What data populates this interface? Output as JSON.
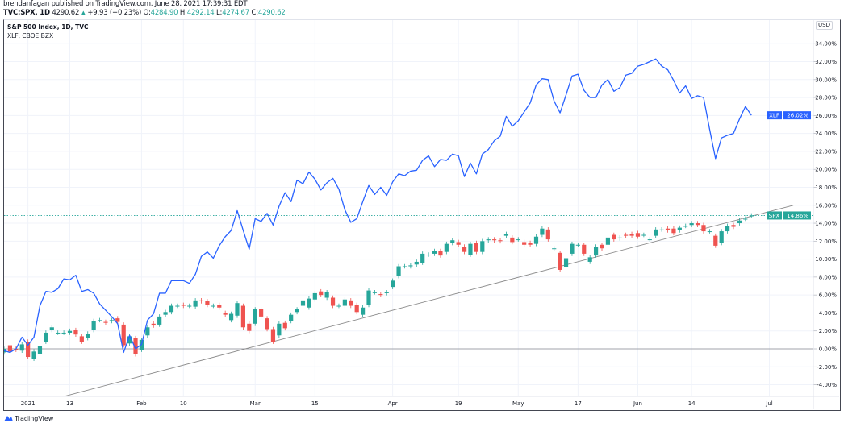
{
  "header": {
    "published": "brendanfagan published on TradingView.com, June 28, 2021 17:39:31 EDT",
    "symbol": "TVC:SPX, 1D",
    "last": "4290.62",
    "change": "+9.93 (+0.23%)",
    "open_label": "O:",
    "open": "4284.90",
    "high_label": "H:",
    "high": "4292.14",
    "low_label": "L:",
    "low": "4274.67",
    "close_label": "C:",
    "close": "4290.62"
  },
  "legend": {
    "main": "S&P 500 Index, 1D, TVC",
    "compare": "XLF, CBOE BZX"
  },
  "currency": "USD",
  "logo": "TradingView",
  "colors": {
    "up": "#26a69a",
    "down": "#ef5350",
    "xlf": "#2962ff",
    "grid": "#f0f3fa",
    "trendline": "#8a8a8a"
  },
  "chart_data": {
    "type": "candlestick+line",
    "y_unit": "percent change",
    "ylim": [
      -5,
      35
    ],
    "grid": true,
    "yticks": [
      "34.00%",
      "32.00%",
      "30.00%",
      "28.00%",
      "26.00%",
      "24.00%",
      "22.00%",
      "20.00%",
      "18.00%",
      "16.00%",
      "14.00%",
      "12.00%",
      "10.00%",
      "8.00%",
      "6.00%",
      "4.00%",
      "2.00%",
      "0.00%",
      "-2.00%",
      "-4.00%"
    ],
    "xticks": [
      "2021",
      "13",
      "Feb",
      "10",
      "Mar",
      "15",
      "Apr",
      "19",
      "May",
      "17",
      "Jun",
      "14",
      "Jul"
    ],
    "series": [
      {
        "name": "SPX",
        "type": "candlestick",
        "last_label": "14.86%",
        "open_close": [
          [
            -0.4,
            0
          ],
          [
            0.4,
            -0.3
          ],
          [
            0,
            -0.1
          ],
          [
            -0.2,
            0.5
          ],
          [
            0.8,
            -0.9
          ],
          [
            -1.1,
            -0.3
          ],
          [
            -0.6,
            0.3
          ],
          [
            0.8,
            1.8
          ],
          [
            2.1,
            2.4
          ],
          [
            1.8,
            1.8
          ],
          [
            1.8,
            1.8
          ],
          [
            1.8,
            2.0
          ],
          [
            2.1,
            1.6
          ],
          [
            1.4,
            0.8
          ],
          [
            1.2,
            1.7
          ],
          [
            2.1,
            3.1
          ],
          [
            3.2,
            3.2
          ],
          [
            3.0,
            2.9
          ],
          [
            3.1,
            3.2
          ],
          [
            3.4,
            3.0
          ],
          [
            2.7,
            0.4
          ],
          [
            0.6,
            1.4
          ],
          [
            1.2,
            -0.6
          ],
          [
            -0.1,
            1.0
          ],
          [
            1.5,
            2.4
          ],
          [
            2.8,
            2.6
          ],
          [
            2.7,
            3.6
          ],
          [
            3.8,
            4.1
          ],
          [
            4.1,
            4.8
          ],
          [
            4.8,
            4.8
          ],
          [
            4.9,
            4.8
          ],
          [
            4.8,
            4.8
          ],
          [
            4.7,
            5.4
          ],
          [
            5.4,
            5.3
          ],
          [
            5.3,
            4.9
          ],
          [
            4.8,
            4.8
          ],
          [
            4.9,
            4.6
          ],
          [
            4.0,
            3.8
          ],
          [
            3.2,
            3.9
          ],
          [
            3.7,
            5.1
          ],
          [
            4.8,
            2.4
          ],
          [
            2.8,
            2.0
          ],
          [
            2.8,
            4.4
          ],
          [
            4.4,
            3.6
          ],
          [
            3.4,
            2.2
          ],
          [
            2.2,
            0.8
          ],
          [
            1.5,
            2.8
          ],
          [
            2.9,
            2.3
          ],
          [
            3.1,
            3.8
          ],
          [
            4.1,
            4.4
          ],
          [
            4.8,
            5.4
          ],
          [
            4.6,
            5.6
          ],
          [
            5.5,
            6.2
          ],
          [
            6.4,
            6.0
          ],
          [
            5.7,
            6.3
          ],
          [
            5.7,
            4.8
          ],
          [
            4.8,
            4.8
          ],
          [
            4.8,
            5.5
          ],
          [
            5.4,
            4.8
          ],
          [
            4.9,
            4.1
          ],
          [
            3.8,
            4.6
          ],
          [
            4.9,
            6.5
          ],
          [
            6.3,
            6.3
          ],
          [
            6.1,
            6.0
          ],
          [
            6.2,
            6.3
          ],
          [
            6.9,
            7.6
          ],
          [
            8.1,
            9.2
          ],
          [
            9.2,
            9.2
          ],
          [
            9.2,
            9.3
          ],
          [
            9.4,
            9.7
          ],
          [
            9.6,
            10.6
          ],
          [
            10.5,
            10.5
          ],
          [
            10.6,
            10.9
          ],
          [
            10.9,
            10.4
          ],
          [
            10.8,
            11.7
          ],
          [
            11.8,
            12.1
          ],
          [
            11.9,
            11.6
          ],
          [
            11.4,
            10.8
          ],
          [
            10.5,
            11.7
          ],
          [
            11.8,
            10.8
          ],
          [
            10.8,
            12.0
          ],
          [
            12.1,
            12.2
          ],
          [
            12.2,
            12.1
          ],
          [
            12.1,
            12.0
          ],
          [
            12.6,
            12.8
          ],
          [
            12.4,
            11.9
          ],
          [
            12.2,
            12.2
          ],
          [
            11.9,
            11.6
          ],
          [
            11.8,
            11.6
          ],
          [
            11.7,
            12.5
          ],
          [
            12.7,
            13.4
          ],
          [
            13.3,
            12.2
          ],
          [
            11.2,
            11.2
          ],
          [
            10.7,
            8.8
          ],
          [
            9.1,
            10.1
          ],
          [
            10.6,
            11.7
          ],
          [
            11.6,
            11.6
          ],
          [
            11.6,
            10.6
          ],
          [
            9.7,
            10.2
          ],
          [
            10.4,
            11.4
          ],
          [
            11.6,
            11.2
          ],
          [
            11.6,
            12.4
          ],
          [
            12.7,
            12.2
          ],
          [
            12.3,
            12.4
          ],
          [
            12.7,
            12.6
          ],
          [
            12.8,
            12.6
          ],
          [
            12.9,
            12.5
          ],
          [
            12.7,
            12.7
          ],
          [
            12.2,
            12.2
          ],
          [
            12.6,
            13.3
          ],
          [
            13.3,
            13.3
          ],
          [
            13.4,
            13.2
          ],
          [
            13.4,
            12.9
          ],
          [
            13.2,
            13.5
          ],
          [
            13.7,
            13.7
          ],
          [
            13.8,
            14.0
          ],
          [
            14.0,
            13.8
          ],
          [
            13.8,
            13.1
          ],
          [
            13.1,
            13.1
          ],
          [
            12.6,
            11.5
          ],
          [
            11.8,
            13.1
          ],
          [
            13.1,
            13.7
          ],
          [
            13.8,
            13.6
          ],
          [
            14.0,
            14.3
          ],
          [
            14.5,
            14.5
          ],
          [
            14.8,
            14.86
          ]
        ]
      },
      {
        "name": "XLF",
        "type": "line",
        "last_label": "26.02%",
        "values": [
          -0.2,
          -0.4,
          0,
          1.3,
          0.4,
          1.3,
          4.8,
          6.4,
          6.3,
          6.7,
          7.8,
          7.7,
          8.2,
          6.4,
          6.6,
          6.2,
          5.0,
          4.3,
          3.6,
          2.8,
          -0.4,
          1.5,
          0,
          0.5,
          3.2,
          3.9,
          6.2,
          6.2,
          7.6,
          7.6,
          7.6,
          7.3,
          8.3,
          10.3,
          10.8,
          10.1,
          11.5,
          12.5,
          13.2,
          15.4,
          13.2,
          11.1,
          14.5,
          14.2,
          15.1,
          13.8,
          15.9,
          17.4,
          16.4,
          18.8,
          18.4,
          19.7,
          18.9,
          17.7,
          18.5,
          19.0,
          17.8,
          15.5,
          14.1,
          14.5,
          16.4,
          18.2,
          17.2,
          18.0,
          17.1,
          18.6,
          19.5,
          19.3,
          19.8,
          19.9,
          21.0,
          21.5,
          20.3,
          21.1,
          21.0,
          21.7,
          21.5,
          19.2,
          20.7,
          19.5,
          21.7,
          22.2,
          23.2,
          23.7,
          25.9,
          24.8,
          25.4,
          26.4,
          27.4,
          29.4,
          30.1,
          30.0,
          27.6,
          26.3,
          28.3,
          30.4,
          30.6,
          28.8,
          28.0,
          28.0,
          29.4,
          30.0,
          28.7,
          29.1,
          30.5,
          30.7,
          31.5,
          31.7,
          32.0,
          32.3,
          31.5,
          31.1,
          29.9,
          28.5,
          29.3,
          27.9,
          28.2,
          28.0,
          24.5,
          21.2,
          23.5,
          23.8,
          24.0,
          25.6,
          27.0,
          26.02
        ]
      }
    ],
    "trendline": {
      "start": {
        "bar": 10,
        "value": -5.3
      },
      "end": {
        "bar": 132,
        "value": 16.0
      }
    }
  }
}
